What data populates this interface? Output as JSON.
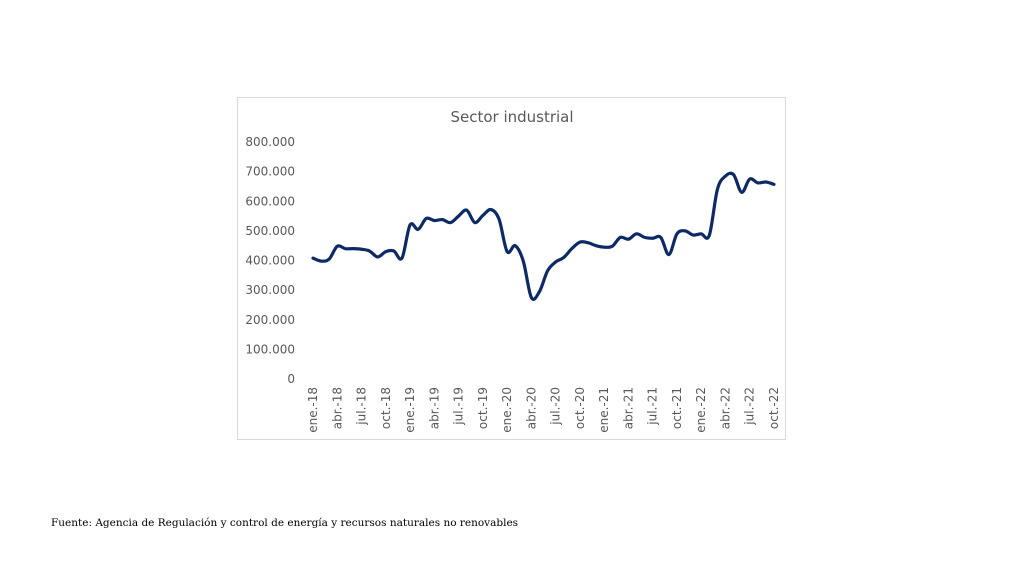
{
  "source_note": "Fuente: Agencia de Regulación y control de energía y recursos naturales no renovables",
  "chart_data": {
    "type": "line",
    "title": "Sector industrial",
    "xlabel": "",
    "ylabel": "",
    "ylim": [
      0,
      800000
    ],
    "y_ticks": [
      0,
      100000,
      200000,
      300000,
      400000,
      500000,
      600000,
      700000,
      800000
    ],
    "y_tick_labels": [
      "0",
      "100.000",
      "200.000",
      "300.000",
      "400.000",
      "500.000",
      "600.000",
      "700.000",
      "800.000"
    ],
    "x_tick_labels": [
      "ene.-18",
      "abr.-18",
      "jul.-18",
      "oct.-18",
      "ene.-19",
      "abr.-19",
      "jul.-19",
      "oct.-19",
      "ene.-20",
      "abr.-20",
      "jul.-20",
      "oct.-20",
      "ene.-21",
      "abr.-21",
      "jul.-21",
      "oct.-21",
      "ene.-22",
      "abr.-22",
      "jul.-22",
      "oct.-22"
    ],
    "grid": false,
    "legend": "none",
    "line_color": "#0d2a66",
    "series": [
      {
        "months": [
          "ene.-18",
          "feb.-18",
          "mar.-18",
          "abr.-18",
          "may.-18",
          "jun.-18",
          "jul.-18",
          "ago.-18",
          "sep.-18",
          "oct.-18",
          "nov.-18",
          "dic.-18",
          "ene.-19",
          "feb.-19",
          "mar.-19",
          "abr.-19",
          "may.-19",
          "jun.-19",
          "jul.-19",
          "ago.-19",
          "sep.-19",
          "oct.-19",
          "nov.-19",
          "dic.-19",
          "ene.-20",
          "feb.-20",
          "mar.-20",
          "abr.-20",
          "may.-20",
          "jun.-20",
          "jul.-20",
          "ago.-20",
          "sep.-20",
          "oct.-20",
          "nov.-20",
          "dic.-20",
          "ene.-21",
          "feb.-21",
          "mar.-21",
          "abr.-21",
          "may.-21",
          "jun.-21",
          "jul.-21",
          "ago.-21",
          "sep.-21",
          "oct.-21",
          "nov.-21",
          "dic.-21",
          "ene.-22",
          "feb.-22",
          "mar.-22",
          "abr.-22",
          "may.-22",
          "jun.-22",
          "jul.-22",
          "ago.-22",
          "sep.-22",
          "oct.-22"
        ],
        "values": [
          408000,
          398000,
          405000,
          448000,
          440000,
          440000,
          438000,
          432000,
          412000,
          430000,
          432000,
          408000,
          520000,
          505000,
          542000,
          535000,
          538000,
          528000,
          550000,
          570000,
          528000,
          552000,
          572000,
          540000,
          430000,
          450000,
          398000,
          275000,
          295000,
          365000,
          395000,
          410000,
          440000,
          462000,
          460000,
          450000,
          445000,
          448000,
          478000,
          472000,
          490000,
          478000,
          475000,
          478000,
          420000,
          490000,
          500000,
          486000,
          490000,
          485000,
          640000,
          685000,
          690000,
          630000,
          675000,
          662000,
          665000,
          657000
        ]
      }
    ]
  }
}
